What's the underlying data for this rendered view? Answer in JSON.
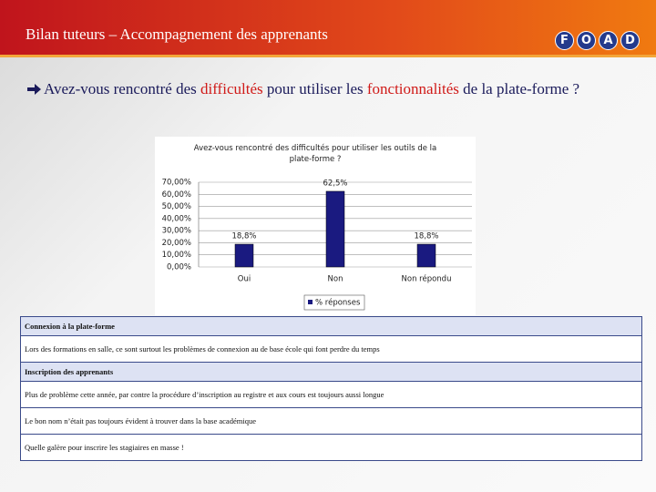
{
  "header": {
    "title": "Bilan tuteurs – Accompagnement des apprenants",
    "logo": [
      "F",
      "O",
      "A",
      "D"
    ]
  },
  "question": [
    "Avez-vous rencontré des",
    "difficultés",
    "pour utiliser les",
    "fonctionnalités",
    "de la plate-forme ?"
  ],
  "chart_data": {
    "type": "bar",
    "title": "Avez-vous rencontré des difficultés pour utiliser les outils de la plate-forme ?",
    "categories": [
      "Oui",
      "Non",
      "Non répondu"
    ],
    "series": [
      {
        "name": "% réponses",
        "color": "#1a1a80",
        "values": [
          18.8,
          62.5,
          18.8
        ],
        "value_labels": [
          "18,8%",
          "62,5%",
          "18,8%"
        ]
      }
    ],
    "ylim": [
      0,
      70
    ],
    "yticks": [
      {
        "value": 0,
        "label": "0,00%"
      },
      {
        "value": 10,
        "label": "10,00%"
      },
      {
        "value": 20,
        "label": "20,00%"
      },
      {
        "value": 30,
        "label": "30,00%"
      },
      {
        "value": 40,
        "label": "40,00%"
      },
      {
        "value": 50,
        "label": "50,00%"
      },
      {
        "value": 60,
        "label": "60,00%"
      },
      {
        "value": 70,
        "label": "70,00%"
      }
    ],
    "grid": true
  },
  "table": {
    "rows": [
      "Connexion à la plate-forme",
      "Lors des formations en salle, ce sont surtout les problèmes de connexion au de base école qui font perdre du temps",
      "Inscription des apprenants",
      "Plus de problème cette année, par contre la procédure d’inscription au registre et aux cours est toujours aussi longue",
      "Le bon nom n’était pas toujours évident à trouver dans la base académique",
      "Quelle galère pour inscrire les stagiaires en masse !"
    ]
  }
}
